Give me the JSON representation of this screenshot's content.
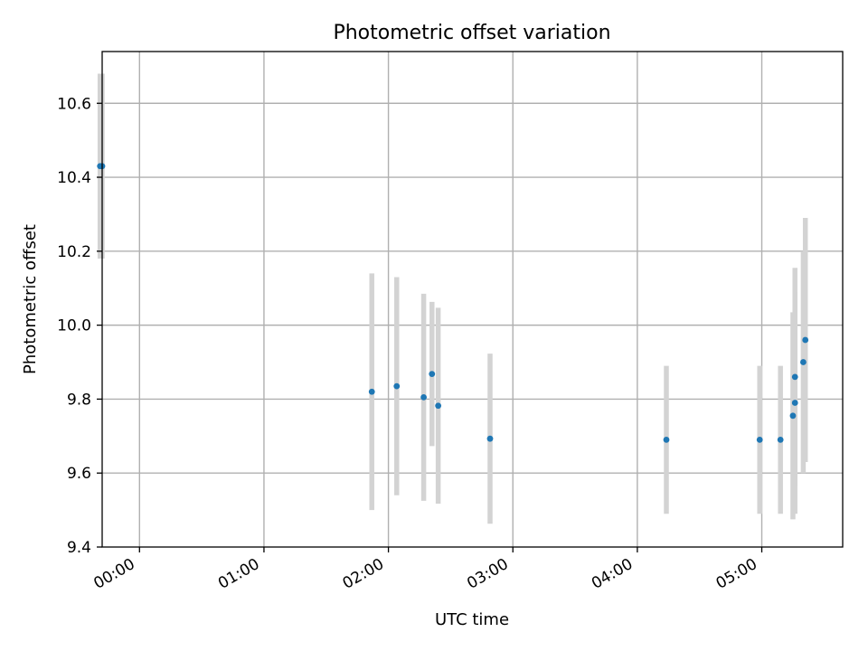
{
  "chart_data": {
    "type": "scatter",
    "title": "Photometric offset variation",
    "xlabel": "UTC time",
    "ylabel": "Photometric offset",
    "xlim": [
      "-00:18",
      "05:39"
    ],
    "ylim": [
      9.4,
      10.74
    ],
    "grid": true,
    "x_ticks": [
      "00:00",
      "01:00",
      "02:00",
      "03:00",
      "04:00",
      "05:00"
    ],
    "y_ticks": [
      9.4,
      9.6,
      9.8,
      10.0,
      10.2,
      10.4,
      10.6
    ],
    "marker_color": "#1f77b4",
    "errorbar_color": "#d3d3d3",
    "points": [
      {
        "t": "-00:19",
        "y": 10.43,
        "err": 0.25
      },
      {
        "t": "-00:18",
        "y": 10.43,
        "err": 0.25
      },
      {
        "t": "01:52",
        "y": 9.82,
        "err": 0.32
      },
      {
        "t": "02:04",
        "y": 9.835,
        "err": 0.295
      },
      {
        "t": "02:17",
        "y": 9.805,
        "err": 0.28
      },
      {
        "t": "02:21",
        "y": 9.868,
        "err": 0.195
      },
      {
        "t": "02:24",
        "y": 9.782,
        "err": 0.265
      },
      {
        "t": "02:49",
        "y": 9.693,
        "err": 0.23
      },
      {
        "t": "04:14",
        "y": 9.69,
        "err": 0.2
      },
      {
        "t": "04:59",
        "y": 9.69,
        "err": 0.2
      },
      {
        "t": "05:09",
        "y": 9.69,
        "err": 0.2
      },
      {
        "t": "05:15",
        "y": 9.755,
        "err": 0.28
      },
      {
        "t": "05:16",
        "y": 9.79,
        "err": 0.3
      },
      {
        "t": "05:16",
        "y": 9.86,
        "err": 0.295
      },
      {
        "t": "05:20",
        "y": 9.9,
        "err": 0.3
      },
      {
        "t": "05:21",
        "y": 9.96,
        "err": 0.33
      }
    ]
  }
}
